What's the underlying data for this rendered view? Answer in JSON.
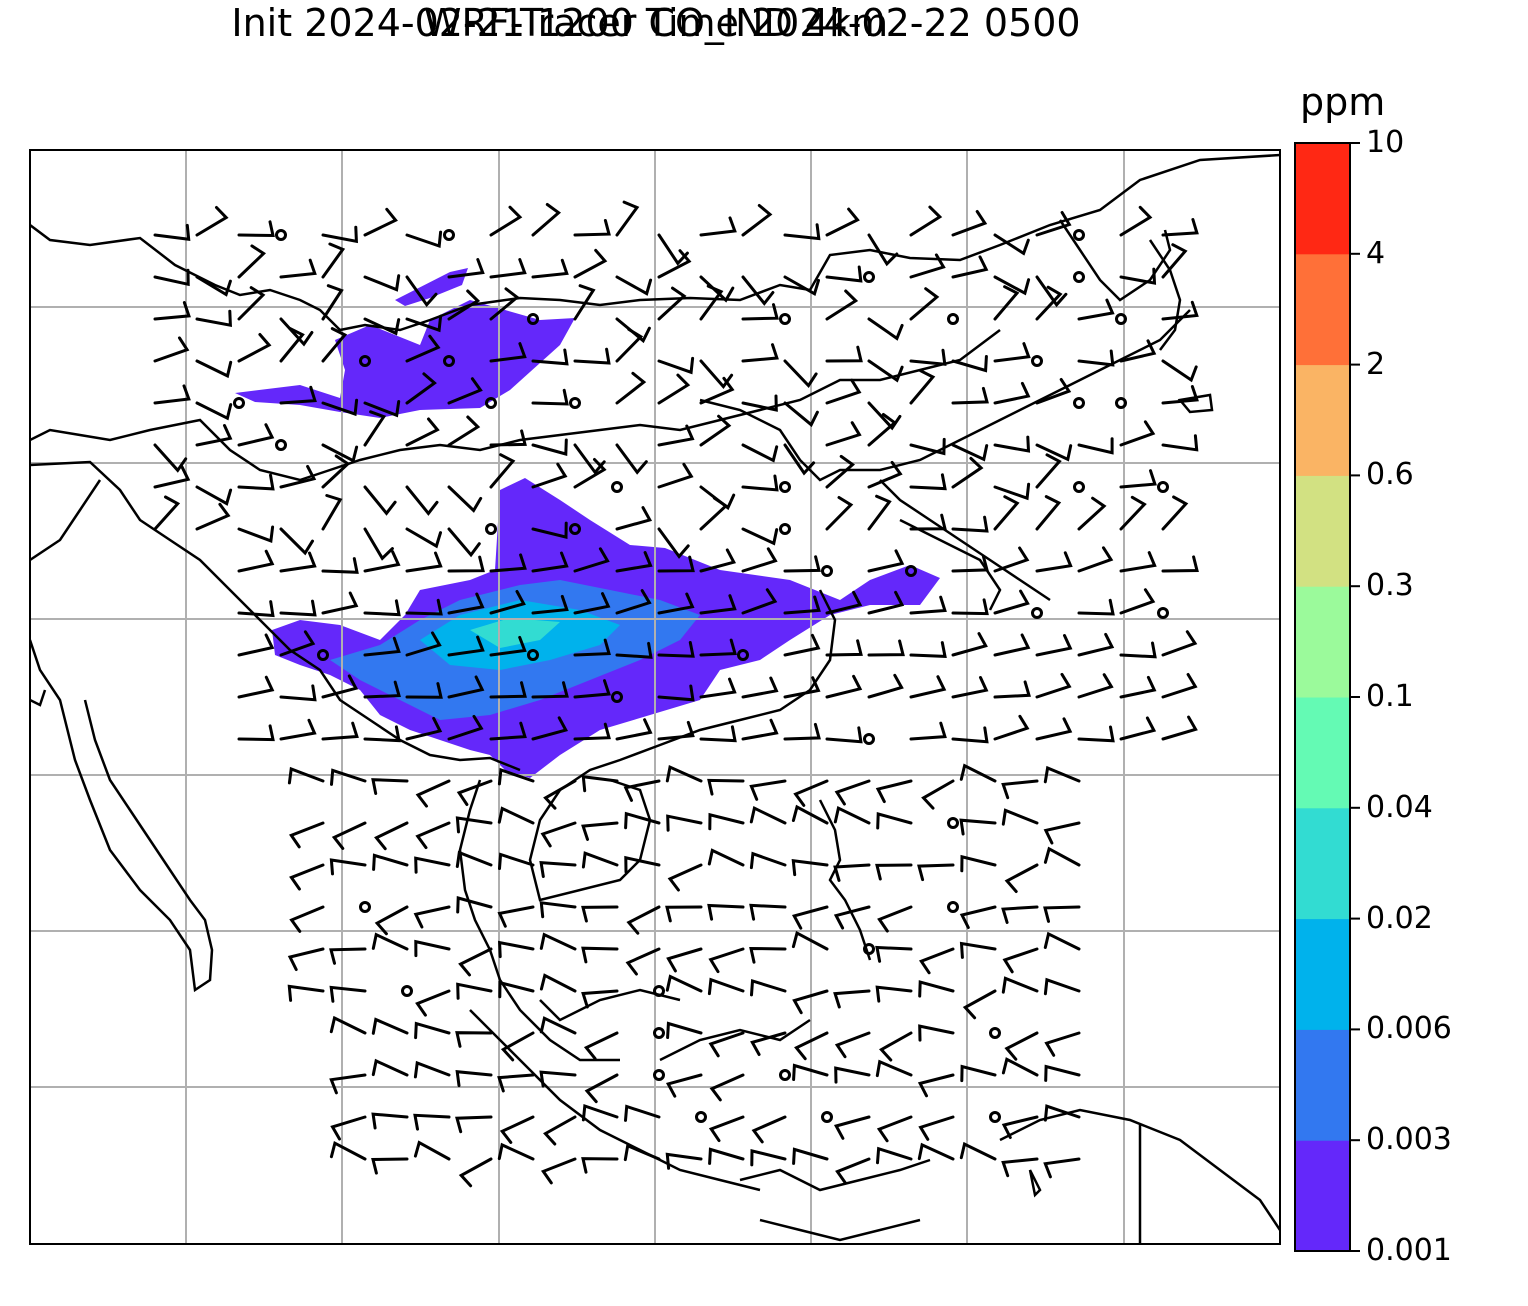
{
  "title": {
    "line1": "WRF-Tracer CO_IND 4km",
    "line2": "Init 2024-02-21 1200 Time 2024-02-22 0500"
  },
  "colorbar": {
    "unit": "ppm",
    "levels": [
      "0.001",
      "0.003",
      "0.006",
      "0.02",
      "0.04",
      "0.1",
      "0.3",
      "0.6",
      "2",
      "4",
      "10"
    ],
    "colors": [
      "#6428fa",
      "#3278f0",
      "#00b2ec",
      "#32dcd2",
      "#64fab4",
      "#9bfa9b",
      "#d2e182",
      "#fab464",
      "#ff7038",
      "#ff2814"
    ]
  },
  "map": {
    "gridlines": "on",
    "gridline_color": "#b0b0b0",
    "coastline_color": "#000000",
    "wind_barb_color": "#000000"
  }
}
